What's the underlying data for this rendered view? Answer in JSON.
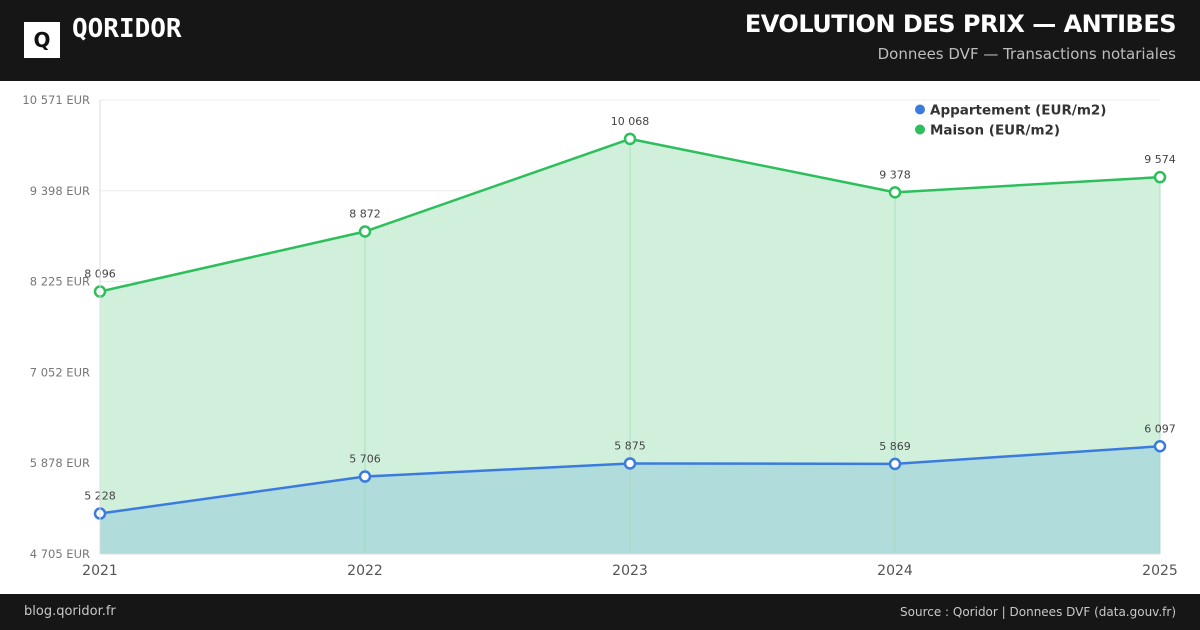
{
  "header": {
    "logo_letter": "Q",
    "brand": "QORIDOR",
    "title": "EVOLUTION DES PRIX — ANTIBES",
    "subtitle": "Donnees DVF — Transactions notariales"
  },
  "footer": {
    "left": "blog.qoridor.fr",
    "right": "Source : Qoridor | Donnees DVF (data.gouv.fr)"
  },
  "chart_data": {
    "type": "area",
    "x": [
      "2021",
      "2022",
      "2023",
      "2024",
      "2025"
    ],
    "ylim": [
      4705,
      10571
    ],
    "yticks": [
      4705,
      5878,
      7052,
      8225,
      9398,
      10571
    ],
    "ytick_labels": [
      "4 705 EUR",
      "5 878 EUR",
      "7 052 EUR",
      "8 225 EUR",
      "9 398 EUR",
      "10 571 EUR"
    ],
    "grid": true,
    "legend_position": "top-right",
    "series": [
      {
        "name": "Appartement (EUR/m2)",
        "color": "#3b7be0",
        "fill": "#b0dcdc",
        "values": [
          5228,
          5706,
          5875,
          5869,
          6097
        ],
        "labels": [
          "5 228",
          "5 706",
          "5 875",
          "5 869",
          "6 097"
        ]
      },
      {
        "name": "Maison (EUR/m2)",
        "color": "#2cbf5c",
        "fill": "#d1f0dc",
        "values": [
          8096,
          8872,
          10068,
          9378,
          9574
        ],
        "labels": [
          "8 096",
          "8 872",
          "10 068",
          "9 378",
          "9 574"
        ]
      }
    ]
  }
}
